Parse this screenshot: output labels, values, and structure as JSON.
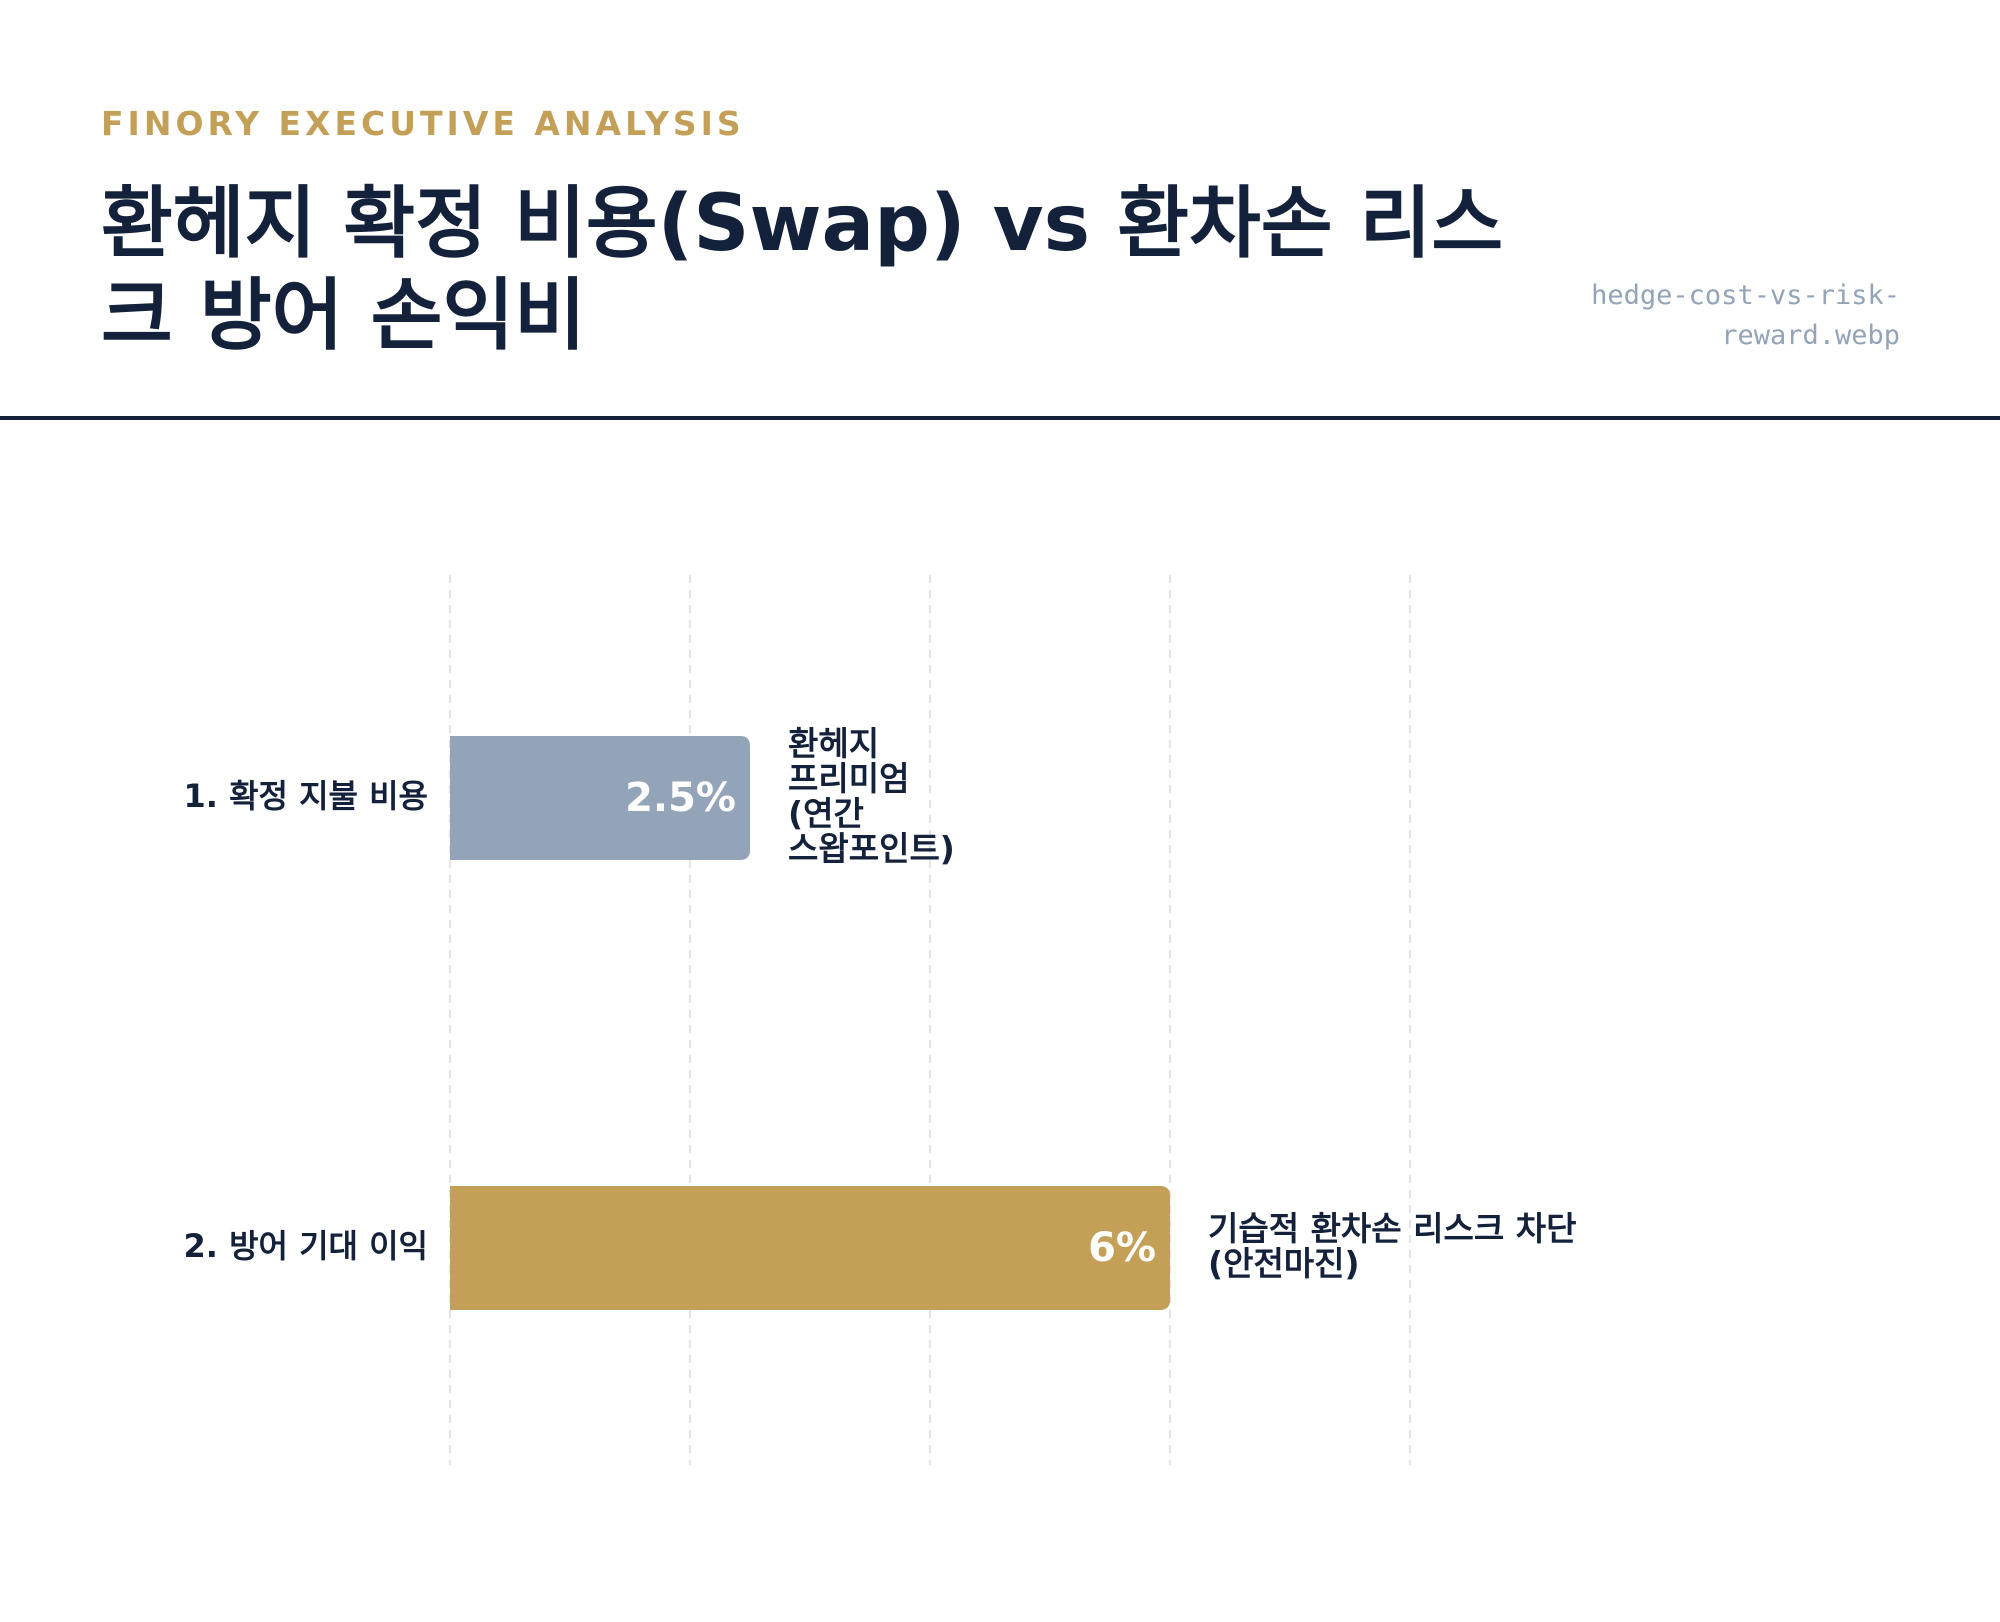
{
  "header": {
    "eyebrow": "FINORY EXECUTIVE ANALYSIS",
    "title": "환헤지 확정 비용(Swap) vs 환차손 리스크 방어 손익비",
    "filename": "hedge-cost-vs-risk-reward.webp"
  },
  "colors": {
    "accent": "#c39f58",
    "navy": "#14213a",
    "muted": "#93a3b8",
    "grid": "#e3e3e3"
  },
  "chart_data": {
    "type": "bar",
    "orientation": "horizontal",
    "title": "환헤지 확정 비용(Swap) vs 환차손 리스크 방어 손익비",
    "xlim": [
      0,
      10
    ],
    "grid": true,
    "categories": [
      "1. 확정 지불 비용",
      "2. 방어 기대 이익"
    ],
    "values": [
      2.5,
      6
    ],
    "value_labels": [
      "2.5%",
      "6%"
    ],
    "annotations": [
      [
        "환헤지",
        "프리미엄",
        "(연간",
        "스왑포인트)"
      ],
      [
        "기습적 환차손 리스크 차단",
        "(안전마진)"
      ]
    ],
    "bar_colors": [
      "#93a3b8",
      "#c39f58"
    ]
  }
}
